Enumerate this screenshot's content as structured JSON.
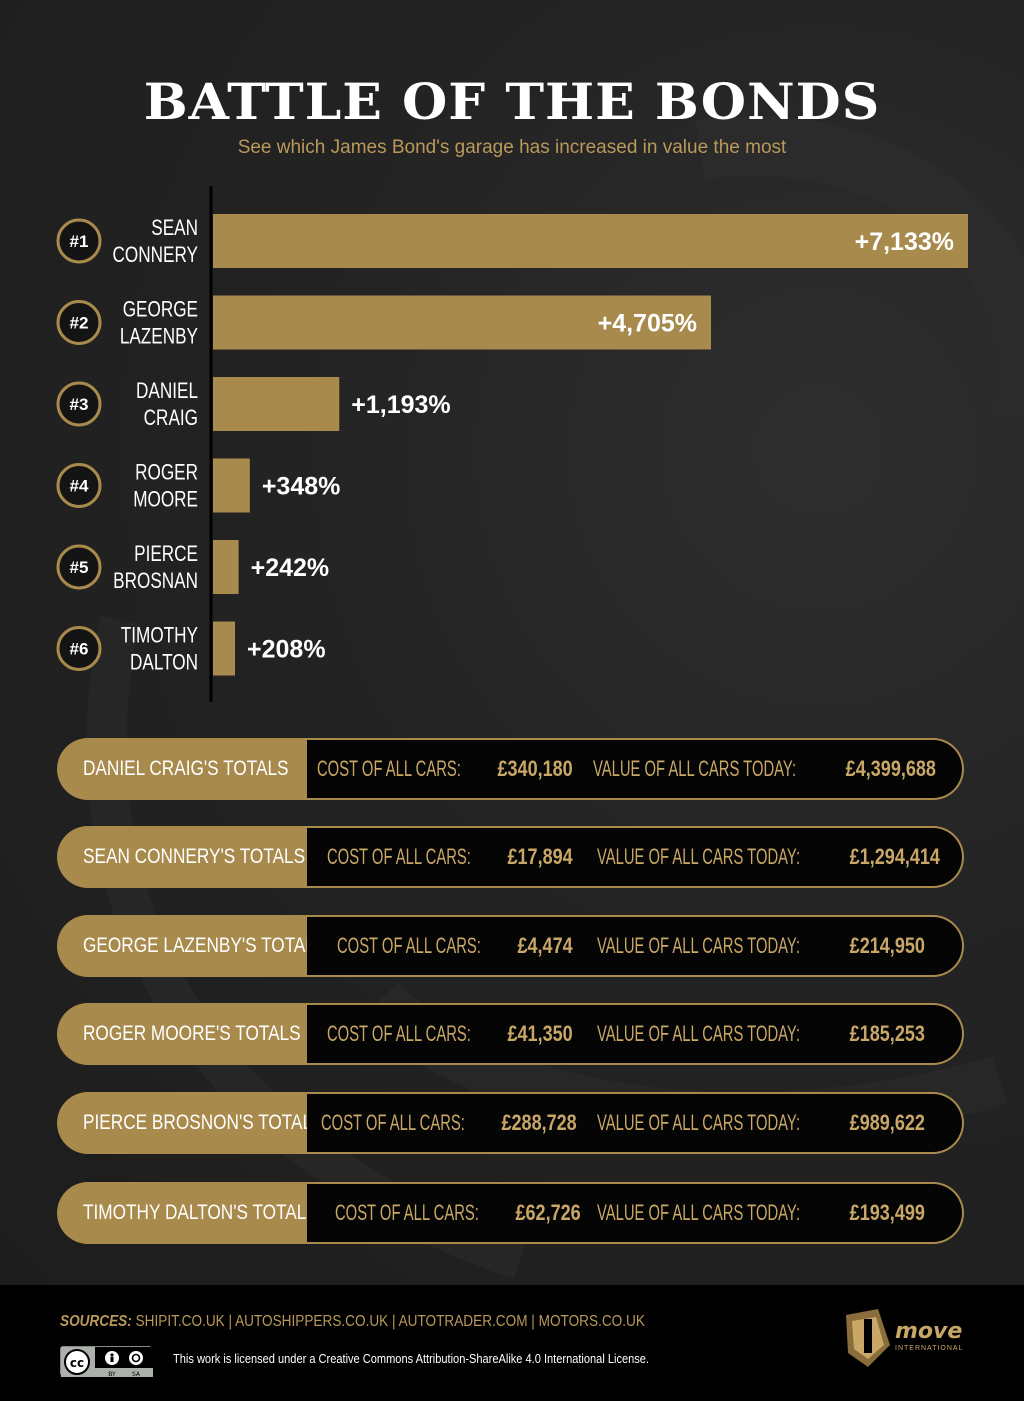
{
  "title": "BATTLE OF THE BONDS",
  "subtitle": "See which James Bond's garage has increased in value the most",
  "colors": {
    "gold": "#a88a4c",
    "gold_text": "#c9a766",
    "background": "#202020",
    "panel": "#050505"
  },
  "chart_data": {
    "type": "bar",
    "orientation": "horizontal",
    "title": "BATTLE OF THE BONDS",
    "ranks": [
      "#1",
      "#2",
      "#3",
      "#4",
      "#5",
      "#6"
    ],
    "categories": [
      [
        "SEAN",
        "CONNERY"
      ],
      [
        "GEORGE",
        "LAZENBY"
      ],
      [
        "DANIEL",
        "CRAIG"
      ],
      [
        "ROGER",
        "MOORE"
      ],
      [
        "PIERCE",
        "BROSNAN"
      ],
      [
        "TIMOTHY",
        "DALTON"
      ]
    ],
    "values": [
      7133,
      4705,
      1193,
      348,
      242,
      208
    ],
    "value_labels": [
      "+7,133%",
      "+4,705%",
      "+1,193%",
      "+348%",
      "+242%",
      "+208%"
    ],
    "xlim": [
      0,
      7133
    ],
    "grid": false,
    "legend": "none"
  },
  "totals": [
    {
      "label": "DANIEL CRAIG'S TOTALS",
      "cost_prefix": "COST OF ALL CARS:",
      "cost": "£340,180",
      "value_prefix": "VALUE OF ALL CARS TODAY:",
      "value": "£4,399,688"
    },
    {
      "label": "SEAN CONNERY'S TOTALS",
      "cost_prefix": "COST OF ALL CARS:",
      "cost": "£17,894",
      "value_prefix": "VALUE OF ALL CARS TODAY:",
      "value": "£1,294,414"
    },
    {
      "label": "GEORGE LAZENBY'S TOTALS",
      "cost_prefix": "COST OF ALL CARS:",
      "cost": "£4,474",
      "value_prefix": "VALUE OF ALL CARS TODAY:",
      "value": "£214,950"
    },
    {
      "label": "ROGER MOORE'S TOTALS",
      "cost_prefix": "COST OF ALL CARS:",
      "cost": "£41,350",
      "value_prefix": "VALUE OF ALL CARS TODAY:",
      "value": "£185,253"
    },
    {
      "label": "PIERCE BROSNON'S TOTALS",
      "cost_prefix": "COST OF ALL CARS:",
      "cost": "£288,728",
      "value_prefix": "VALUE OF ALL CARS TODAY:",
      "value": "£989,622"
    },
    {
      "label": "TIMOTHY DALTON'S TOTALS",
      "cost_prefix": "COST OF ALL CARS:",
      "cost": "£62,726",
      "value_prefix": "VALUE OF ALL CARS TODAY:",
      "value": "£193,499"
    }
  ],
  "footer": {
    "sources_label": "SOURCES:",
    "sources": "SHIPIT.CO.UK | AUTOSHIPPERS.CO.UK | AUTOTRADER.COM | MOTORS.CO.UK",
    "license": "This work is licensed under a Creative Commons Attribution-ShareAlike 4.0 International License.",
    "cc_badge": "cc-by-sa-badge",
    "logo_text": "move",
    "logo_subtext": "INTERNATIONAL"
  }
}
